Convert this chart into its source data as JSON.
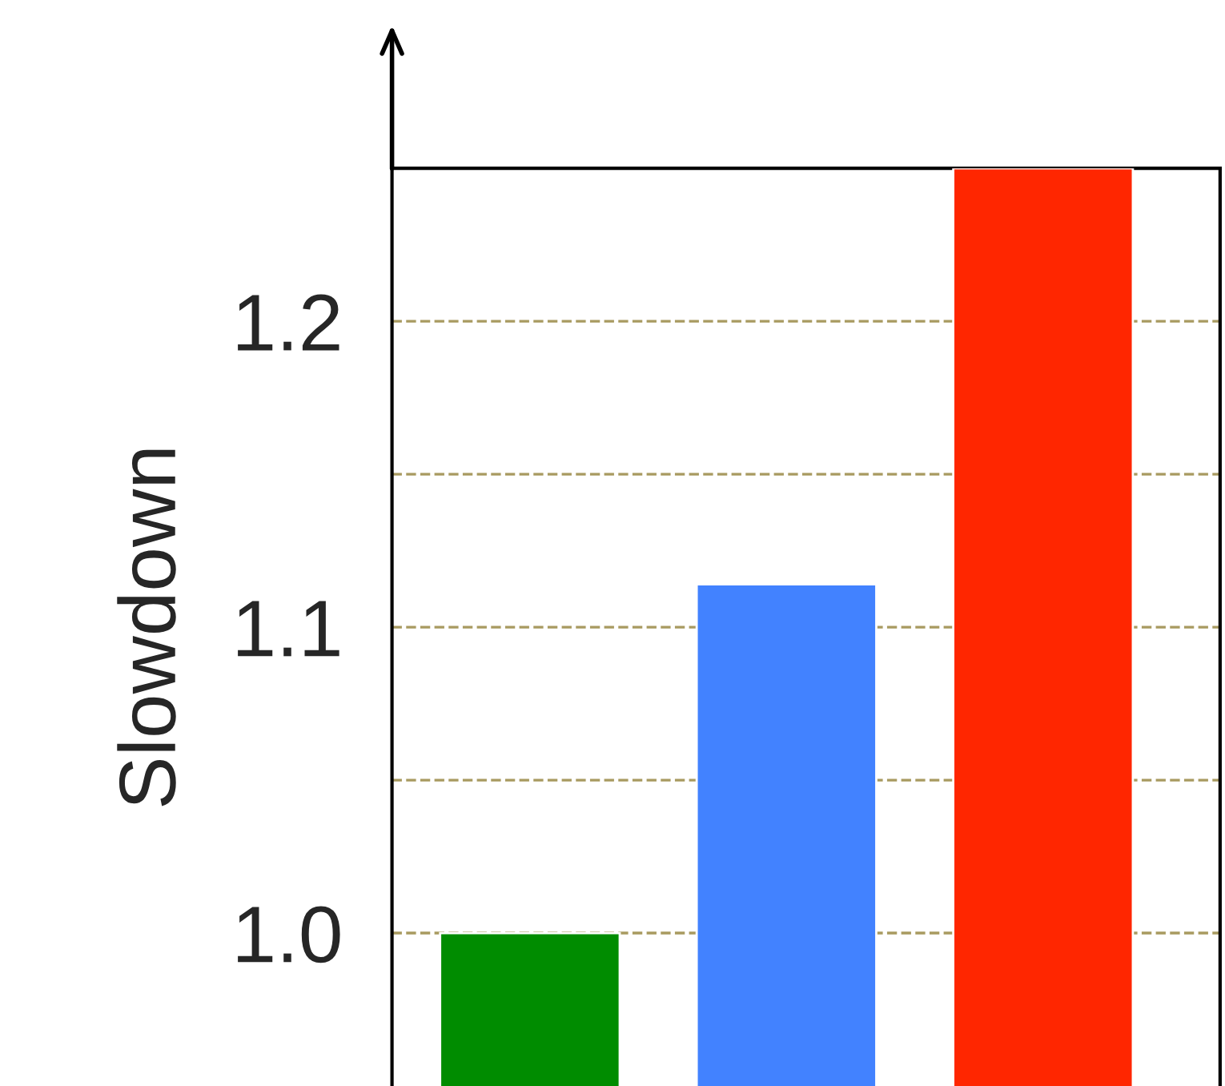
{
  "chart_data": {
    "type": "bar",
    "ylabel": "Slowdown",
    "categories": [
      null,
      null,
      null
    ],
    "values": [
      1.0,
      1.114,
      1.25
    ],
    "colors": [
      "#008c00",
      "#4282ff",
      "#ff2600"
    ],
    "ylim": [
      0.95,
      1.25
    ],
    "yticks": [
      {
        "value": 1.0,
        "label": "1.0"
      },
      {
        "value": 1.05,
        "label": null
      },
      {
        "value": 1.1,
        "label": "1.1"
      },
      {
        "value": 1.15,
        "label": null
      },
      {
        "value": 1.2,
        "label": "1.2"
      }
    ],
    "grid": "y",
    "tick_labels": "y"
  }
}
